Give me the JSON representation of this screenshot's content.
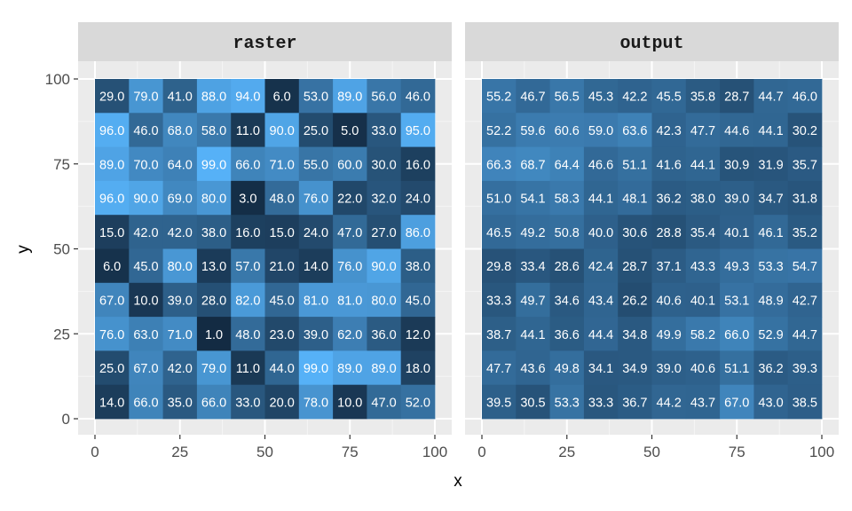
{
  "chart_data": {
    "type": "heatmap",
    "xlabel": "x",
    "ylabel": "y",
    "xlim": [
      0,
      100
    ],
    "ylim": [
      0,
      100
    ],
    "x_ticks": [
      0,
      25,
      50,
      75,
      100
    ],
    "y_ticks": [
      0,
      25,
      50,
      75,
      100
    ],
    "x_tick_labels": [
      "0",
      "25",
      "50",
      "75",
      "100"
    ],
    "y_tick_labels": [
      "0",
      "25",
      "50",
      "75",
      "100"
    ],
    "cell_size": 10,
    "x_centers": [
      5,
      15,
      25,
      35,
      45,
      55,
      65,
      75,
      85,
      95
    ],
    "y_centers_top_to_bottom": [
      95,
      85,
      75,
      65,
      55,
      45,
      35,
      25,
      15,
      5
    ],
    "fill_scale": {
      "low": "#132B43",
      "high": "#56B1F7"
    },
    "grid": true,
    "panels": [
      {
        "title": "raster",
        "value_range": [
          1,
          99
        ],
        "rows_top_to_bottom": [
          [
            "29.0",
            "79.0",
            "41.0",
            "88.0",
            "94.0",
            "6.0",
            "53.0",
            "89.0",
            "56.0",
            "46.0"
          ],
          [
            "96.0",
            "46.0",
            "68.0",
            "58.0",
            "11.0",
            "90.0",
            "25.0",
            "5.0",
            "33.0",
            "95.0"
          ],
          [
            "89.0",
            "70.0",
            "64.0",
            "99.0",
            "66.0",
            "71.0",
            "55.0",
            "60.0",
            "30.0",
            "16.0"
          ],
          [
            "96.0",
            "90.0",
            "69.0",
            "80.0",
            "3.0",
            "48.0",
            "76.0",
            "22.0",
            "32.0",
            "24.0"
          ],
          [
            "15.0",
            "42.0",
            "42.0",
            "38.0",
            "16.0",
            "15.0",
            "24.0",
            "47.0",
            "27.0",
            "86.0"
          ],
          [
            "6.0",
            "45.0",
            "80.0",
            "13.0",
            "57.0",
            "21.0",
            "14.0",
            "76.0",
            "90.0",
            "38.0"
          ],
          [
            "67.0",
            "10.0",
            "39.0",
            "28.0",
            "82.0",
            "45.0",
            "81.0",
            "81.0",
            "80.0",
            "45.0"
          ],
          [
            "76.0",
            "63.0",
            "71.0",
            "1.0",
            "48.0",
            "23.0",
            "39.0",
            "62.0",
            "36.0",
            "12.0"
          ],
          [
            "25.0",
            "67.0",
            "42.0",
            "79.0",
            "11.0",
            "44.0",
            "99.0",
            "89.0",
            "89.0",
            "18.0"
          ],
          [
            "14.0",
            "66.0",
            "35.0",
            "66.0",
            "33.0",
            "20.0",
            "78.0",
            "10.0",
            "47.0",
            "52.0"
          ]
        ]
      },
      {
        "title": "output",
        "value_range": [
          1,
          99
        ],
        "rows_top_to_bottom": [
          [
            "55.2",
            "46.7",
            "56.5",
            "45.3",
            "42.2",
            "45.5",
            "35.8",
            "28.7",
            "44.7",
            "46.0"
          ],
          [
            "52.2",
            "59.6",
            "60.6",
            "59.0",
            "63.6",
            "42.3",
            "47.7",
            "44.6",
            "44.1",
            "30.2"
          ],
          [
            "66.3",
            "68.7",
            "64.4",
            "46.6",
            "51.1",
            "41.6",
            "44.1",
            "30.9",
            "31.9",
            "35.7"
          ],
          [
            "51.0",
            "54.1",
            "58.3",
            "44.1",
            "48.1",
            "36.2",
            "38.0",
            "39.0",
            "34.7",
            "31.8"
          ],
          [
            "46.5",
            "49.2",
            "50.8",
            "40.0",
            "30.6",
            "28.8",
            "35.4",
            "40.1",
            "46.1",
            "35.2"
          ],
          [
            "29.8",
            "33.4",
            "28.6",
            "42.4",
            "28.7",
            "37.1",
            "43.3",
            "49.3",
            "53.3",
            "54.7"
          ],
          [
            "33.3",
            "49.7",
            "34.6",
            "43.4",
            "26.2",
            "40.6",
            "40.1",
            "53.1",
            "48.9",
            "42.7"
          ],
          [
            "38.7",
            "44.1",
            "36.6",
            "44.4",
            "34.8",
            "49.9",
            "58.2",
            "66.0",
            "52.9",
            "44.7"
          ],
          [
            "47.7",
            "43.6",
            "49.8",
            "34.1",
            "34.9",
            "39.0",
            "40.6",
            "51.1",
            "36.2",
            "39.3"
          ],
          [
            "39.5",
            "30.5",
            "53.3",
            "33.3",
            "36.7",
            "44.2",
            "43.7",
            "67.0",
            "43.0",
            "38.5"
          ]
        ]
      }
    ]
  }
}
